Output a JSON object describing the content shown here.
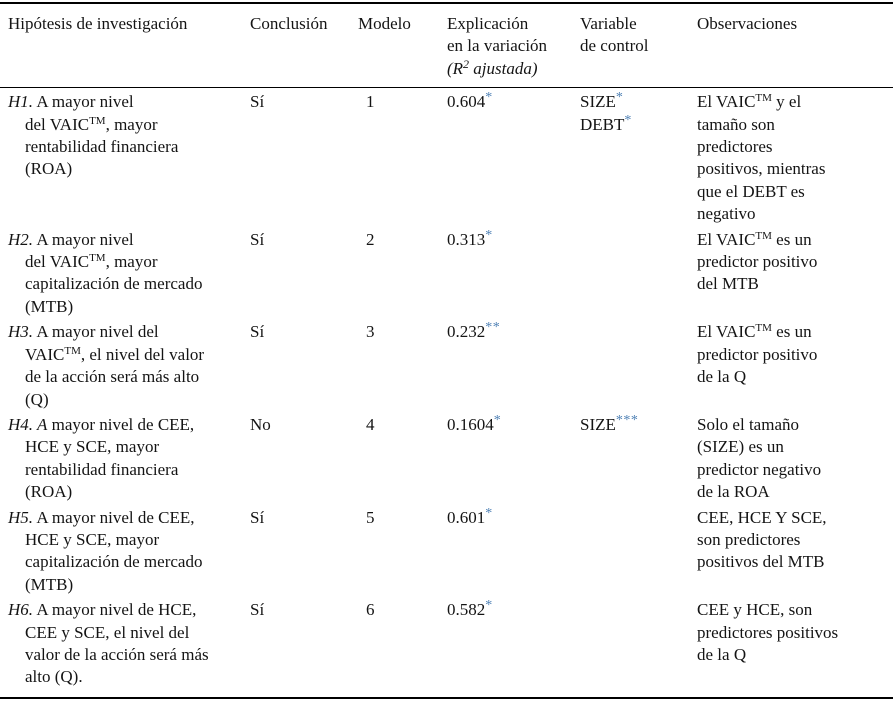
{
  "colors": {
    "asterisk": "#4f81b5",
    "rule": "#000000",
    "text": "#141414",
    "background": "#ffffff"
  },
  "table": {
    "columns": [
      {
        "key": "hypothesis",
        "label": [
          {
            "t": "Hipótesis de investigación"
          }
        ]
      },
      {
        "key": "conclusion",
        "label": [
          {
            "t": "Conclusión"
          }
        ]
      },
      {
        "key": "model",
        "label": [
          {
            "t": "Modelo"
          }
        ]
      },
      {
        "key": "explanation",
        "label": [
          {
            "t": "Explicación\nen la variación\n"
          },
          {
            "t": "(R",
            "s": "i"
          },
          {
            "t": "2",
            "s": "isup"
          },
          {
            "t": " ajustada)",
            "s": "i"
          }
        ]
      },
      {
        "key": "control",
        "label": [
          {
            "t": "Variable\nde control"
          }
        ]
      },
      {
        "key": "observations",
        "label": [
          {
            "t": "Observaciones"
          }
        ]
      }
    ],
    "rows": [
      {
        "id": "H1",
        "hypothesis": [
          {
            "t": "H1.",
            "s": "i"
          },
          {
            "t": " A mayor nivel\ndel VAIC"
          },
          {
            "t": "TM",
            "s": "sup"
          },
          {
            "t": ", mayor\nrentabilidad financiera\n(ROA)"
          }
        ],
        "conclusion": [
          {
            "t": "Sí"
          }
        ],
        "model": [
          {
            "t": "1"
          }
        ],
        "explanation": [
          {
            "t": "0.604"
          },
          {
            "t": "*",
            "s": "star"
          }
        ],
        "control": [
          {
            "t": "SIZE"
          },
          {
            "t": "*",
            "s": "star"
          },
          {
            "t": "\nDEBT"
          },
          {
            "t": "*",
            "s": "star"
          }
        ],
        "observations": [
          {
            "t": "El VAIC"
          },
          {
            "t": "TM",
            "s": "sup"
          },
          {
            "t": " y el\ntamaño son\npredictores\npositivos, mientras\nque el DEBT es\nnegativo"
          }
        ]
      },
      {
        "id": "H2",
        "hypothesis": [
          {
            "t": "H2.",
            "s": "i"
          },
          {
            "t": " A mayor nivel\ndel VAIC"
          },
          {
            "t": "TM",
            "s": "sup"
          },
          {
            "t": ", mayor\ncapitalización de mercado\n(MTB)"
          }
        ],
        "conclusion": [
          {
            "t": "Sí"
          }
        ],
        "model": [
          {
            "t": "2"
          }
        ],
        "explanation": [
          {
            "t": "0.313"
          },
          {
            "t": "*",
            "s": "star"
          }
        ],
        "control": [],
        "observations": [
          {
            "t": "El VAIC"
          },
          {
            "t": "TM",
            "s": "sup"
          },
          {
            "t": " es un\npredictor positivo\ndel MTB"
          }
        ]
      },
      {
        "id": "H3",
        "hypothesis": [
          {
            "t": "H3.",
            "s": "i"
          },
          {
            "t": " A mayor nivel del\nVAIC"
          },
          {
            "t": "TM",
            "s": "sup"
          },
          {
            "t": ", el nivel del valor\nde la acción será más alto\n(Q)"
          }
        ],
        "conclusion": [
          {
            "t": "Sí"
          }
        ],
        "model": [
          {
            "t": "3"
          }
        ],
        "explanation": [
          {
            "t": "0.232"
          },
          {
            "t": "**",
            "s": "star"
          }
        ],
        "control": [],
        "observations": [
          {
            "t": "El VAIC"
          },
          {
            "t": "TM",
            "s": "sup"
          },
          {
            "t": " es un\npredictor positivo\nde la Q"
          }
        ]
      },
      {
        "id": "H4",
        "hypothesis": [
          {
            "t": "H4. A",
            "s": "i"
          },
          {
            "t": " mayor nivel de CEE,\nHCE y SCE, mayor\nrentabilidad financiera\n(ROA)"
          }
        ],
        "conclusion": [
          {
            "t": "No"
          }
        ],
        "model": [
          {
            "t": "4"
          }
        ],
        "explanation": [
          {
            "t": "0.1604"
          },
          {
            "t": "*",
            "s": "star"
          }
        ],
        "control": [
          {
            "t": "SIZE"
          },
          {
            "t": "***",
            "s": "star"
          }
        ],
        "observations": [
          {
            "t": "Solo el tamaño\n(SIZE) es un\npredictor negativo\nde la ROA"
          }
        ]
      },
      {
        "id": "H5",
        "hypothesis": [
          {
            "t": "H5.",
            "s": "i"
          },
          {
            "t": " A mayor nivel de CEE,\nHCE y SCE, mayor\ncapitalización de mercado\n(MTB)"
          }
        ],
        "conclusion": [
          {
            "t": "Sí"
          }
        ],
        "model": [
          {
            "t": "5"
          }
        ],
        "explanation": [
          {
            "t": "0.601"
          },
          {
            "t": "*",
            "s": "star"
          }
        ],
        "control": [],
        "observations": [
          {
            "t": "CEE, HCE Y SCE,\nson predictores\npositivos del MTB"
          }
        ]
      },
      {
        "id": "H6",
        "hypothesis": [
          {
            "t": "H6.",
            "s": "i"
          },
          {
            "t": " A mayor nivel de HCE,\nCEE y SCE, el nivel del\nvalor de la acción será más\nalto (Q)."
          }
        ],
        "conclusion": [
          {
            "t": "Sí"
          }
        ],
        "model": [
          {
            "t": "6"
          }
        ],
        "explanation": [
          {
            "t": "0.582"
          },
          {
            "t": "*",
            "s": "star"
          }
        ],
        "control": [],
        "observations": [
          {
            "t": "CEE y HCE, son\npredictores positivos\nde la Q"
          }
        ]
      }
    ]
  }
}
